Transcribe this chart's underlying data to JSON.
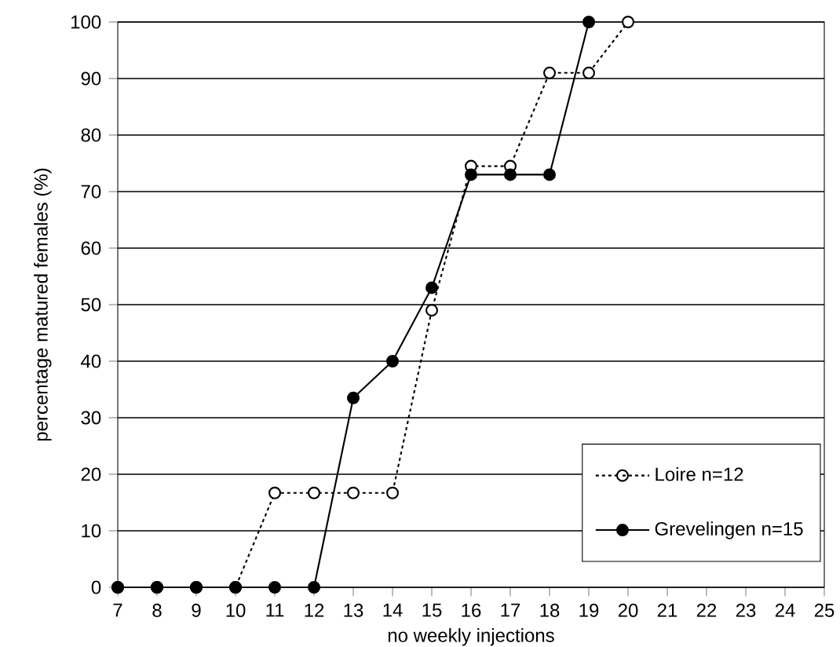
{
  "chart_data": {
    "type": "line",
    "xlabel": "no weekly injections",
    "ylabel": "percentage matured females (%)",
    "xlim": [
      7,
      25
    ],
    "ylim": [
      0,
      100
    ],
    "xticks": [
      7,
      8,
      9,
      10,
      11,
      12,
      13,
      14,
      15,
      16,
      17,
      18,
      19,
      20,
      21,
      22,
      23,
      24,
      25
    ],
    "yticks": [
      0,
      10,
      20,
      30,
      40,
      50,
      60,
      70,
      80,
      90,
      100
    ],
    "grid": "y",
    "legend": "bottom right",
    "marker": "circle",
    "series": [
      {
        "name": "Loire n=12",
        "color": "#000000",
        "line_style": "dotted",
        "x": [
          7,
          8,
          9,
          10,
          11,
          12,
          13,
          14,
          15,
          16,
          17,
          18,
          19,
          20
        ],
        "values": [
          0,
          0,
          0,
          0,
          16.7,
          16.7,
          16.7,
          16.7,
          49,
          74.5,
          74.5,
          91,
          91,
          100
        ]
      },
      {
        "name": "Grevelingen n=15",
        "color": "#000000",
        "line_style": "solid",
        "x": [
          7,
          8,
          9,
          10,
          11,
          12,
          13,
          14,
          15,
          16,
          17,
          18,
          19
        ],
        "values": [
          0,
          0,
          0,
          0,
          0,
          0,
          33.5,
          40,
          53,
          73,
          73,
          73,
          100
        ]
      }
    ]
  }
}
